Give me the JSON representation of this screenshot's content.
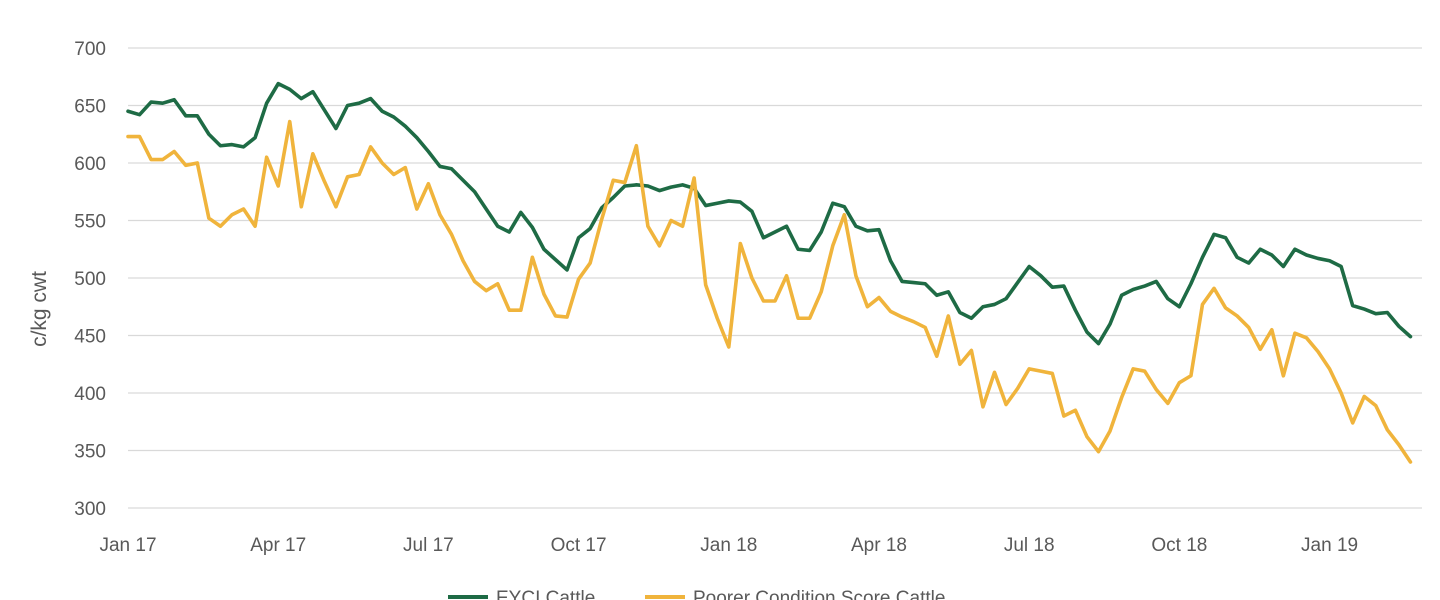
{
  "chart_data": {
    "type": "line",
    "title": "",
    "xlabel": "",
    "ylabel": "c/kg cwt",
    "ylim": [
      300,
      700
    ],
    "yticks": [
      300,
      350,
      400,
      450,
      500,
      550,
      600,
      650,
      700
    ],
    "xlim": [
      0,
      112
    ],
    "xticks": [
      {
        "index": 0,
        "label": "Jan 17"
      },
      {
        "index": 13,
        "label": "Apr 17"
      },
      {
        "index": 26,
        "label": "Jul 17"
      },
      {
        "index": 39,
        "label": "Oct 17"
      },
      {
        "index": 52,
        "label": "Jan 18"
      },
      {
        "index": 65,
        "label": "Apr 18"
      },
      {
        "index": 78,
        "label": "Jul 18"
      },
      {
        "index": 91,
        "label": "Oct 18"
      },
      {
        "index": 104,
        "label": "Jan 19"
      }
    ],
    "grid": true,
    "legend_position": "bottom",
    "series": [
      {
        "name": "EYCI Cattle",
        "color": "#1e6b45",
        "values": [
          645,
          642,
          653,
          652,
          655,
          641,
          641,
          625,
          615,
          616,
          614,
          622,
          652,
          669,
          664,
          656,
          662,
          646,
          630,
          650,
          652,
          656,
          645,
          640,
          632,
          622,
          610,
          597,
          595,
          585,
          575,
          560,
          545,
          540,
          557,
          544,
          525,
          516,
          507,
          535,
          543,
          561,
          570,
          580,
          581,
          580,
          576,
          579,
          581,
          578,
          563,
          565,
          567,
          566,
          558,
          535,
          540,
          545,
          525,
          524,
          540,
          565,
          562,
          545,
          541,
          542,
          515,
          497,
          496,
          495,
          485,
          488,
          470,
          465,
          475,
          477,
          482,
          496,
          510,
          502,
          492,
          493,
          472,
          453,
          443,
          460,
          485,
          490,
          493,
          497,
          482,
          475,
          495,
          518,
          538,
          535,
          518,
          513,
          525,
          520,
          510,
          525,
          520,
          517,
          515,
          510,
          476,
          473,
          469,
          470,
          458,
          449
        ]
      },
      {
        "name": "Poorer Condition Score Cattle",
        "color": "#f0b43c",
        "values": [
          623,
          623,
          603,
          603,
          610,
          598,
          600,
          552,
          545,
          555,
          560,
          545,
          605,
          580,
          636,
          562,
          608,
          584,
          562,
          588,
          590,
          614,
          600,
          590,
          596,
          560,
          582,
          555,
          538,
          515,
          497,
          489,
          495,
          472,
          472,
          518,
          486,
          467,
          466,
          499,
          513,
          551,
          585,
          583,
          615,
          545,
          528,
          550,
          545,
          587,
          494,
          465,
          440,
          530,
          500,
          480,
          480,
          502,
          465,
          465,
          488,
          528,
          555,
          502,
          475,
          483,
          471,
          466,
          462,
          457,
          432,
          467,
          425,
          437,
          388,
          418,
          390,
          404,
          421,
          419,
          417,
          380,
          385,
          362,
          349,
          367,
          396,
          421,
          419,
          403,
          391,
          409,
          415,
          477,
          491,
          474,
          467,
          457,
          438,
          455,
          415,
          452,
          448,
          436,
          421,
          400,
          374,
          397,
          389,
          368,
          355,
          340
        ]
      }
    ]
  }
}
